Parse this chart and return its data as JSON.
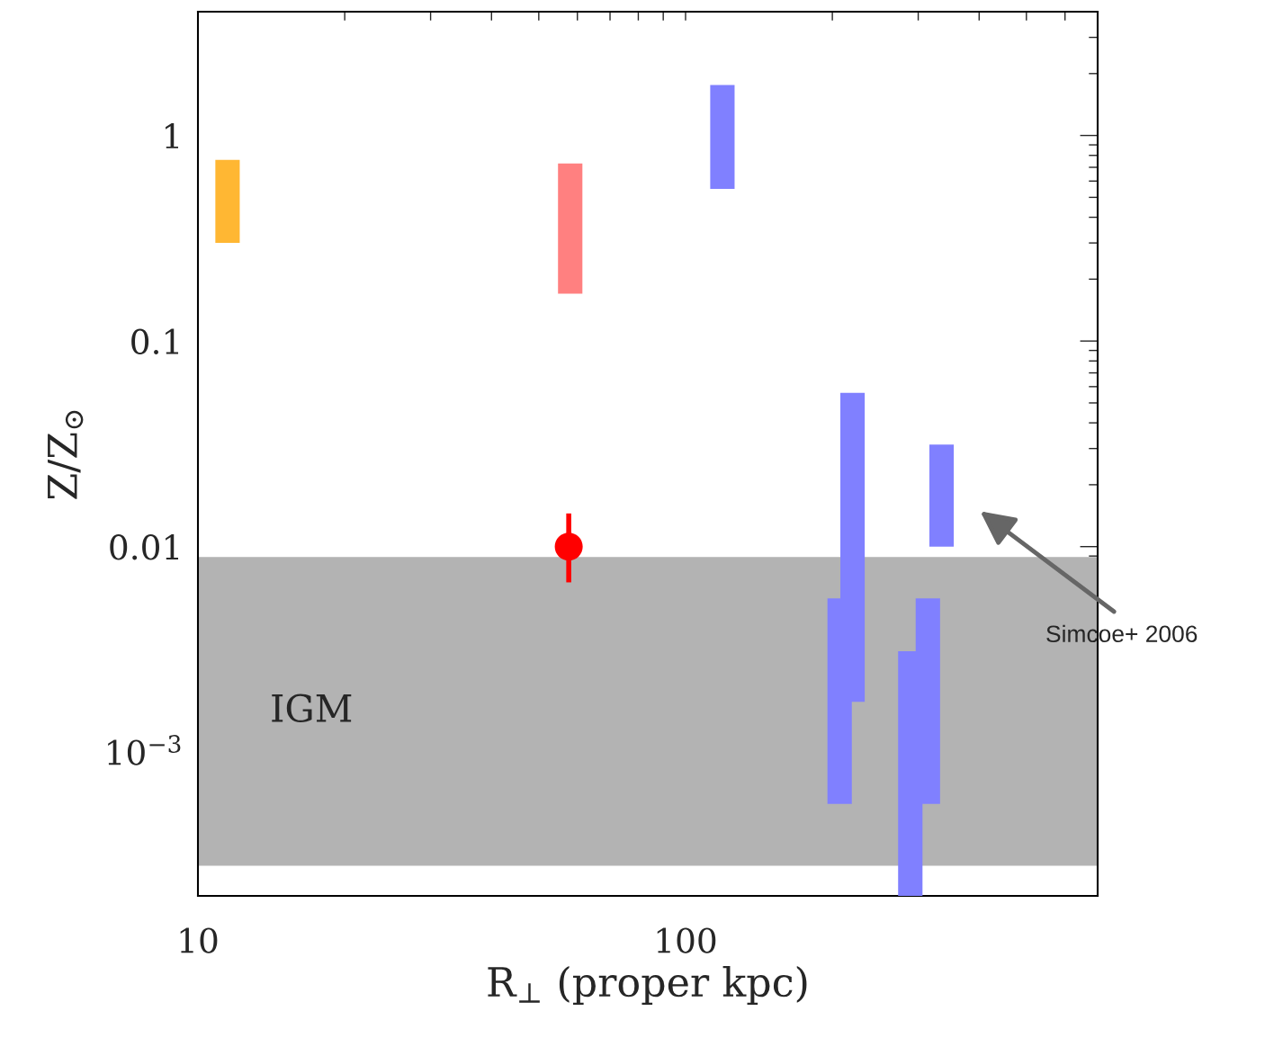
{
  "chart_data": {
    "type": "bar",
    "xlabel": "R$_{⊥}$ (proper kpc)",
    "ylabel": "Z/Z$_{⊙}$",
    "log": "xy",
    "xlim": [
      10,
      700
    ],
    "ylim": [
      0.0002,
      4
    ],
    "xticks": [
      {
        "value": 10,
        "label": "10"
      },
      {
        "value": 20,
        "label": null
      },
      {
        "value": 30,
        "label": null
      },
      {
        "value": 40,
        "label": null
      },
      {
        "value": 50,
        "label": null
      },
      {
        "value": 60,
        "label": null
      },
      {
        "value": 70,
        "label": null
      },
      {
        "value": 80,
        "label": null
      },
      {
        "value": 90,
        "label": null
      },
      {
        "value": 100,
        "label": "100"
      },
      {
        "value": 200,
        "label": null
      },
      {
        "value": 300,
        "label": null
      },
      {
        "value": 400,
        "label": null
      },
      {
        "value": 500,
        "label": null
      },
      {
        "value": 600,
        "label": null
      },
      {
        "value": 700,
        "label": null
      }
    ],
    "yticks": [
      {
        "value": 0.0003,
        "label": null
      },
      {
        "value": 0.0004,
        "label": null
      },
      {
        "value": 0.0005,
        "label": null
      },
      {
        "value": 0.0006,
        "label": null
      },
      {
        "value": 0.0007,
        "label": null
      },
      {
        "value": 0.0008,
        "label": null
      },
      {
        "value": 0.0009,
        "label": null
      },
      {
        "value": 0.001,
        "label": "10$^{−3}$"
      },
      {
        "value": 0.002,
        "label": null
      },
      {
        "value": 0.003,
        "label": null
      },
      {
        "value": 0.004,
        "label": null
      },
      {
        "value": 0.005,
        "label": null
      },
      {
        "value": 0.006,
        "label": null
      },
      {
        "value": 0.007,
        "label": null
      },
      {
        "value": 0.008,
        "label": null
      },
      {
        "value": 0.009,
        "label": null
      },
      {
        "value": 0.01,
        "label": "0.01"
      },
      {
        "value": 0.02,
        "label": null
      },
      {
        "value": 0.03,
        "label": null
      },
      {
        "value": 0.04,
        "label": null
      },
      {
        "value": 0.05,
        "label": null
      },
      {
        "value": 0.06,
        "label": null
      },
      {
        "value": 0.07,
        "label": null
      },
      {
        "value": 0.08,
        "label": null
      },
      {
        "value": 0.09,
        "label": null
      },
      {
        "value": 0.1,
        "label": "0.1"
      },
      {
        "value": 0.2,
        "label": null
      },
      {
        "value": 0.3,
        "label": null
      },
      {
        "value": 0.4,
        "label": null
      },
      {
        "value": 0.5,
        "label": null
      },
      {
        "value": 0.6,
        "label": null
      },
      {
        "value": 0.7,
        "label": null
      },
      {
        "value": 0.8,
        "label": null
      },
      {
        "value": 0.9,
        "label": null
      },
      {
        "value": 1,
        "label": "1"
      },
      {
        "value": 2,
        "label": null
      },
      {
        "value": 3,
        "label": null
      },
      {
        "value": 4,
        "label": null
      }
    ],
    "series": [
      {
        "x": [
          11.5,
          58,
          119,
          207,
          220,
          289,
          314,
          335
        ],
        "base": [
          0.3,
          0.17,
          0.55,
          0.00056,
          0.00176,
          0.0002,
          0.00056,
          0.01
        ],
        "values": [
          0.46,
          0.56,
          1.21,
          0.00504,
          0.05424,
          0.0029,
          0.00504,
          0.0214
        ],
        "colors": [
          "#ffb733",
          "#ff8080",
          "#8080ff",
          "#8080ff",
          "#8080ff",
          "#8080ff",
          "#8080ff",
          "#8080ff"
        ]
      },
      {
        "type": "scatter",
        "x": [
          57.6
        ],
        "values": [
          0.01
        ],
        "errors": [
          [
            0.0067,
            0.0145
          ]
        ],
        "color": "#ff0000",
        "marker": "circle"
      }
    ],
    "bands": [
      {
        "axis": "y",
        "from": 0.00028,
        "to": 0.0089,
        "label": "IGM",
        "color": "#b3b3b3"
      }
    ],
    "annotations": [
      "Simcoe+ 2006"
    ],
    "grid": false,
    "legend": false
  }
}
